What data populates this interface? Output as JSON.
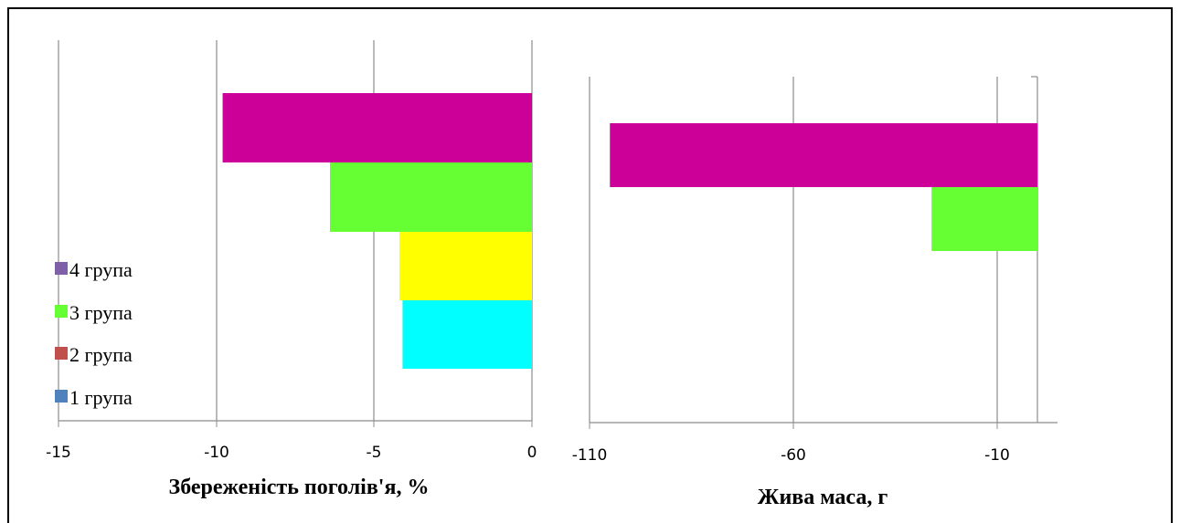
{
  "chart_data": [
    {
      "type": "bar",
      "orientation": "horizontal",
      "categories": [
        "1 група",
        "2 група",
        "3 група",
        "4 група"
      ],
      "series": [
        {
          "name": "1 група",
          "values": [
            -4.1,
            null,
            null,
            null
          ],
          "color": "#00FFFF"
        },
        {
          "name": "2 група",
          "values": [
            null,
            -4.2,
            null,
            null
          ],
          "color": "#FFFF00"
        },
        {
          "name": "3 група",
          "values": [
            null,
            null,
            -6.4,
            null
          ],
          "color": "#66FF33"
        },
        {
          "name": "4 група",
          "values": [
            null,
            null,
            null,
            -9.8
          ],
          "color": "#CC0099"
        }
      ],
      "xlim": [
        -15,
        0
      ],
      "x_ticks": [
        "-15",
        "-10",
        "-5",
        "0"
      ],
      "xlabel": "Збереженість поголів'я, %",
      "grid": "vertical"
    },
    {
      "type": "bar",
      "orientation": "horizontal",
      "categories": [
        "3 група",
        "4 група"
      ],
      "series": [
        {
          "name": "3 група",
          "values": [
            -26,
            null
          ],
          "color": "#66FF33"
        },
        {
          "name": "4 група",
          "values": [
            null,
            -105
          ],
          "color": "#CC0099"
        }
      ],
      "xlim": [
        -110,
        0
      ],
      "x_ticks": [
        "-110",
        "-60",
        "-10"
      ],
      "xlabel": "Жива маса, г",
      "grid": "vertical"
    }
  ],
  "legend": {
    "placement": "bottom-left",
    "items": [
      {
        "label": "4 група",
        "color": "#7F5FA8"
      },
      {
        "label": "3 група",
        "color": "#66FF33"
      },
      {
        "label": "2 група",
        "color": "#C0504D"
      },
      {
        "label": "1 група",
        "color": "#4F81BD"
      }
    ]
  }
}
